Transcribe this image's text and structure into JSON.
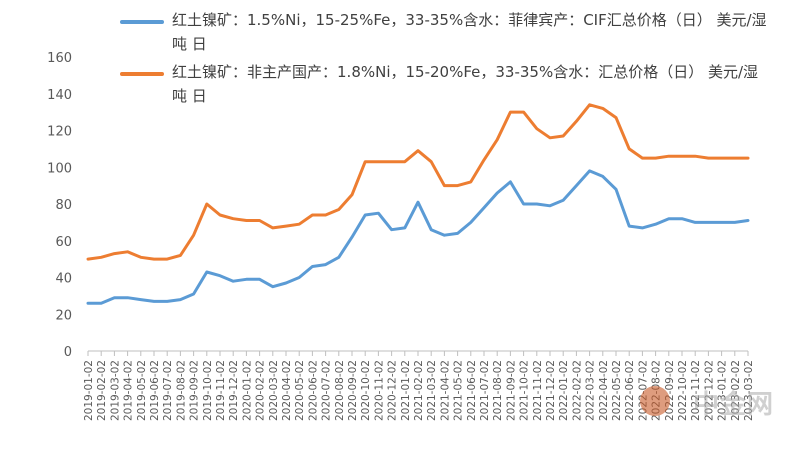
{
  "chart_data": {
    "type": "line",
    "ylim": [
      0,
      160
    ],
    "y_ticks": [
      "0",
      "20",
      "40",
      "60",
      "80",
      "100",
      "120",
      "140",
      "160"
    ],
    "x": [
      "2019-01-02",
      "2019-02-02",
      "2019-03-02",
      "2019-04-02",
      "2019-05-02",
      "2019-06-02",
      "2019-07-02",
      "2019-08-02",
      "2019-09-02",
      "2019-10-02",
      "2019-11-02",
      "2019-12-02",
      "2020-01-02",
      "2020-02-02",
      "2020-03-02",
      "2020-04-02",
      "2020-05-02",
      "2020-06-02",
      "2020-07-02",
      "2020-08-02",
      "2020-09-02",
      "2020-10-02",
      "2020-11-02",
      "2020-12-02",
      "2021-01-02",
      "2021-02-02",
      "2021-03-02",
      "2021-04-02",
      "2021-05-02",
      "2021-06-02",
      "2021-07-02",
      "2021-08-02",
      "2021-09-02",
      "2021-10-02",
      "2021-11-02",
      "2021-12-02",
      "2022-01-02",
      "2022-02-02",
      "2022-03-02",
      "2022-04-02",
      "2022-05-02",
      "2022-06-02",
      "2022-07-02",
      "2022-08-02",
      "2022-09-02",
      "2022-10-02",
      "2022-11-02",
      "2022-12-02",
      "2023-01-02",
      "2023-02-02",
      "2023-03-02"
    ],
    "series": [
      {
        "name": "红土镍矿：1.5%Ni，15-25%Fe，33-35%含水：菲律宾产：CIF汇总价格（日） 美元/湿吨 日",
        "color": "#5B9BD5",
        "values": [
          26,
          26,
          29,
          29,
          28,
          27,
          27,
          28,
          31,
          43,
          41,
          38,
          39,
          39,
          35,
          37,
          40,
          46,
          47,
          51,
          62,
          74,
          75,
          66,
          67,
          81,
          66,
          63,
          64,
          70,
          78,
          86,
          92,
          80,
          80,
          79,
          82,
          90,
          98,
          95,
          88,
          68,
          67,
          69,
          72,
          72,
          70,
          70,
          70,
          70,
          71
        ]
      },
      {
        "name": "红土镍矿：非主产国产：1.8%Ni，15-20%Fe，33-35%含水：汇总价格（日） 美元/湿吨 日",
        "color": "#ED7D31",
        "values": [
          50,
          51,
          53,
          54,
          51,
          50,
          50,
          52,
          63,
          80,
          74,
          72,
          71,
          71,
          67,
          68,
          69,
          74,
          74,
          77,
          85,
          103,
          103,
          103,
          103,
          109,
          103,
          90,
          90,
          92,
          104,
          115,
          130,
          130,
          121,
          116,
          117,
          125,
          134,
          132,
          127,
          110,
          105,
          105,
          106,
          106,
          106,
          105,
          105,
          105,
          105
        ]
      }
    ]
  },
  "watermark": {
    "text": "中金网",
    "badge_color": "#C85A28"
  }
}
